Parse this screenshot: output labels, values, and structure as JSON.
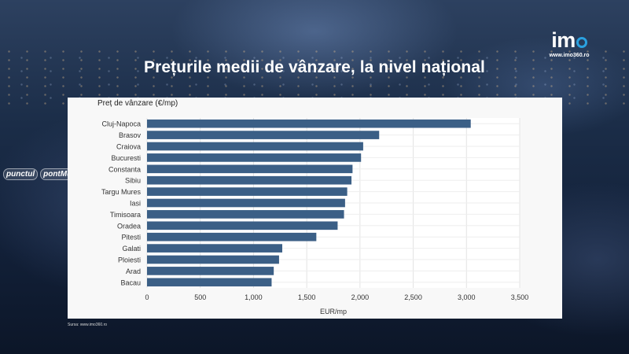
{
  "header": {
    "title": "Prețurile medii de vânzare, la nivel național"
  },
  "brand": {
    "logo_text": "im",
    "url": "www.imo360.ro",
    "accent_color": "#2aa1e0"
  },
  "side_logos": [
    "punctul",
    "pontMures"
  ],
  "footer": {
    "source": "Sursa: www.imo360.ro"
  },
  "chart_data": {
    "type": "bar",
    "orientation": "horizontal",
    "ylabel": "Preț de vânzare (€/mp)",
    "xlabel": "EUR/mp",
    "categories": [
      "Cluj-Napoca",
      "Brasov",
      "Craiova",
      "Bucuresti",
      "Constanta",
      "Sibiu",
      "Targu Mures",
      "Iasi",
      "Timisoara",
      "Oradea",
      "Pitesti",
      "Galati",
      "Ploiesti",
      "Arad",
      "Bacau"
    ],
    "values": [
      3040,
      2180,
      2030,
      2010,
      1930,
      1920,
      1880,
      1860,
      1850,
      1790,
      1590,
      1270,
      1240,
      1190,
      1170
    ],
    "xlim": [
      0,
      3500
    ],
    "xticks": [
      0,
      500,
      1000,
      1500,
      2000,
      2500,
      3000,
      3500
    ],
    "xtick_labels": [
      "0",
      "500",
      "1,000",
      "1,500",
      "2,000",
      "2,500",
      "3,000",
      "3,500"
    ],
    "bar_color": "#3b5f86",
    "grid": true,
    "legend": "none"
  }
}
